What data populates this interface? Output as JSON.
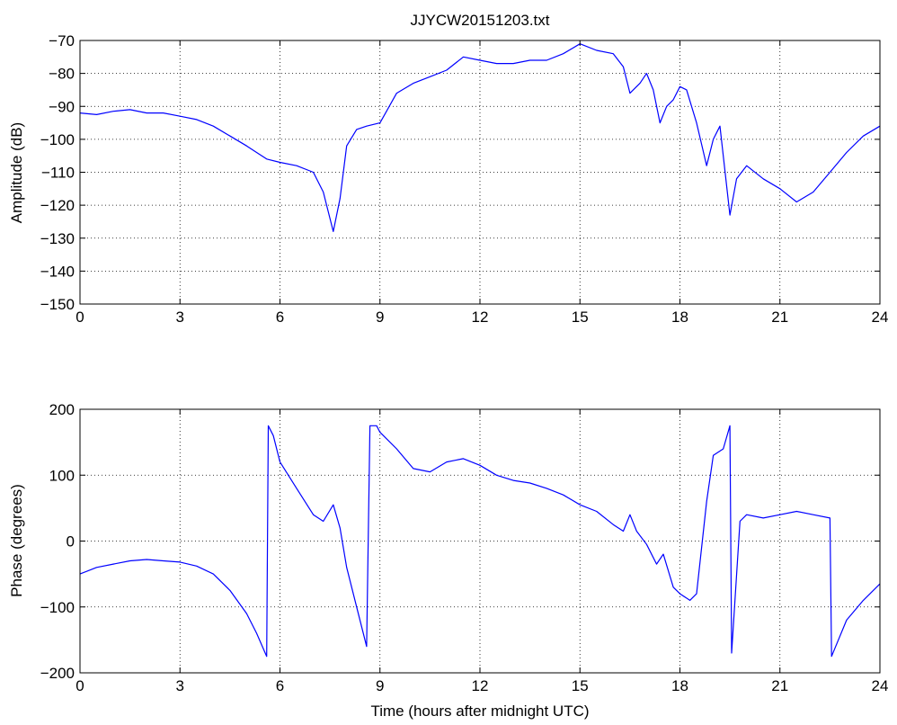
{
  "colors": {
    "line": "#0000ff",
    "axis": "#000000",
    "grid": "#000000",
    "background": "#ffffff"
  },
  "chart_data": [
    {
      "type": "line",
      "title": "JJYCW20151203.txt",
      "xlabel": "",
      "ylabel": "Amplitude (dB)",
      "xlim": [
        0,
        24
      ],
      "ylim": [
        -150,
        -70
      ],
      "xticks": [
        "0",
        "3",
        "6",
        "9",
        "12",
        "15",
        "18",
        "21",
        "24"
      ],
      "yticks": [
        "−70",
        "−80",
        "−90",
        "−100",
        "−110",
        "−120",
        "−130",
        "−140",
        "−150"
      ],
      "grid": true,
      "series": [
        {
          "x": [
            0,
            0.5,
            1,
            1.5,
            2,
            2.5,
            3,
            3.5,
            4,
            4.5,
            5,
            5.3,
            5.6,
            6,
            6.5,
            7,
            7.3,
            7.6,
            7.8,
            8,
            8.3,
            8.6,
            9,
            9.5,
            10,
            10.5,
            11,
            11.5,
            12,
            12.5,
            13,
            13.5,
            14,
            14.5,
            15,
            15.5,
            16,
            16.3,
            16.5,
            16.8,
            17,
            17.2,
            17.4,
            17.6,
            17.8,
            18,
            18.2,
            18.5,
            18.8,
            19,
            19.2,
            19.5,
            19.7,
            20,
            20.5,
            21,
            21.5,
            22,
            22.5,
            23,
            23.5,
            24
          ],
          "y": [
            -92,
            -92.5,
            -91.5,
            -91,
            -92,
            -92,
            -93,
            -94,
            -96,
            -99,
            -102,
            -104,
            -106,
            -107,
            -108,
            -110,
            -116,
            -128,
            -118,
            -102,
            -97,
            -96,
            -95,
            -86,
            -83,
            -81,
            -79,
            -75,
            -76,
            -77,
            -77,
            -76,
            -76,
            -74,
            -71,
            -73,
            -74,
            -78,
            -86,
            -83,
            -80,
            -85,
            -95,
            -90,
            -88,
            -84,
            -85,
            -95,
            -108,
            -100,
            -96,
            -123,
            -112,
            -108,
            -112,
            -115,
            -119,
            -116,
            -110,
            -104,
            -99,
            -96
          ]
        }
      ]
    },
    {
      "type": "line",
      "title": "",
      "xlabel": "Time (hours after midnight UTC)",
      "ylabel": "Phase (degrees)",
      "xlim": [
        0,
        24
      ],
      "ylim": [
        -200,
        200
      ],
      "xticks": [
        "0",
        "3",
        "6",
        "9",
        "12",
        "15",
        "18",
        "21",
        "24"
      ],
      "yticks": [
        "200",
        "100",
        "0",
        "−100",
        "−200"
      ],
      "grid": true,
      "series": [
        {
          "x": [
            0,
            0.5,
            1,
            1.5,
            2,
            2.5,
            3,
            3.5,
            4,
            4.5,
            5,
            5.3,
            5.6,
            5.65,
            5.8,
            6,
            6.5,
            7,
            7.3,
            7.6,
            7.8,
            8,
            8.3,
            8.6,
            8.7,
            8.9,
            9,
            9.5,
            10,
            10.5,
            11,
            11.5,
            12,
            12.5,
            13,
            13.5,
            14,
            14.5,
            15,
            15.5,
            16,
            16.3,
            16.5,
            16.7,
            17,
            17.3,
            17.5,
            17.8,
            18,
            18.3,
            18.5,
            18.8,
            19,
            19.3,
            19.5,
            19.55,
            19.8,
            20,
            20.5,
            21,
            21.5,
            22,
            22.5,
            22.55,
            23,
            23.5,
            24
          ],
          "y": [
            -50,
            -40,
            -35,
            -30,
            -28,
            -30,
            -32,
            -38,
            -50,
            -75,
            -110,
            -140,
            -175,
            175,
            160,
            120,
            80,
            40,
            30,
            55,
            20,
            -40,
            -100,
            -160,
            175,
            175,
            165,
            140,
            110,
            105,
            120,
            125,
            115,
            100,
            92,
            88,
            80,
            70,
            55,
            45,
            25,
            15,
            40,
            15,
            -5,
            -35,
            -20,
            -70,
            -80,
            -90,
            -80,
            60,
            130,
            140,
            175,
            -170,
            30,
            40,
            35,
            40,
            45,
            40,
            35,
            -175,
            -120,
            -90,
            -65
          ]
        }
      ]
    }
  ]
}
